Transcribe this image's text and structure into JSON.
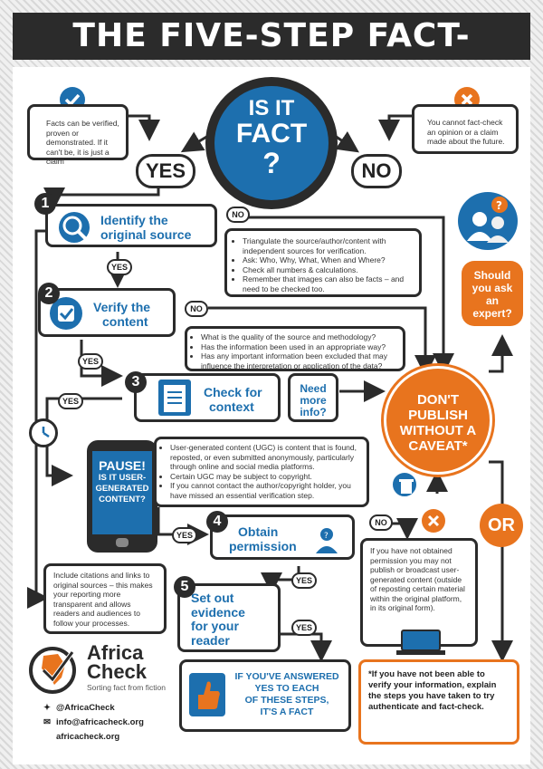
{
  "title": "THE FIVE-STEP FACT-CHECK",
  "center": {
    "line1": "IS IT",
    "line2": "FACT",
    "line3": "?"
  },
  "yes_label": "YES",
  "no_label": "NO",
  "yes_note": "Facts can be verified, proven or demonstrated. If it can't be, it is just a claim",
  "no_note": "You cannot fact-check an opinion or a claim made about the future.",
  "steps": {
    "s1": {
      "num": "1",
      "title_line1": "Identify the",
      "title_line2": "original source"
    },
    "s2": {
      "num": "2",
      "title_line1": "Verify the",
      "title_line2": "content"
    },
    "s3": {
      "num": "3",
      "title_line1": "Check for",
      "title_line2": "context"
    },
    "s4": {
      "num": "4",
      "title_line1": "Obtain",
      "title_line2": "permission"
    },
    "s5": {
      "num": "5",
      "title_line1": "Set out",
      "title_line2": "evidence",
      "title_line3": "for your",
      "title_line4": "reader"
    }
  },
  "labels": {
    "yes": "YES",
    "no": "NO",
    "or": "OR"
  },
  "notes": {
    "triangulate": [
      "Triangulate the source/author/content with independent sources for verification.",
      "Ask: Who, Why, What, When and Where?",
      "Check all numbers & calculations.",
      "Remember that images can also be facts – and need to be checked too."
    ],
    "quality": [
      "What is the quality of the source and methodology?",
      "Has the information been used in an appropriate way?",
      "Has any important information been excluded that may influence the interpretation or application of the data?"
    ],
    "ugc": [
      "User-generated content (UGC) is content that is found, reposted, or even submitted anonymously, particularly through online and social media platforms.",
      "Certain UGC may be subject to copyright.",
      "If you cannot contact the author/copyright holder, you have missed an essential verification step."
    ],
    "citations": "Include citations and links to original sources – this makes your reporting more transparent and allows readers and audiences to follow your processes.",
    "not_obtained": "If you have not obtained permission you may not publish or broadcast user-generated content (outside of reposting certain material within the original platform, in its original form)."
  },
  "need_more_info": {
    "line1": "Need",
    "line2": "more",
    "line3": "info?"
  },
  "dont_publish": {
    "line1": "DON'T",
    "line2": "PUBLISH",
    "line3": "WITHOUT A",
    "line4": "CAVEAT*"
  },
  "expert": {
    "line1": "Should",
    "line2": "you ask",
    "line3": "an",
    "line4": "expert?"
  },
  "pause": {
    "line1": "PAUSE!",
    "line2": "IS IT USER-",
    "line3": "GENERATED",
    "line4": "CONTENT?"
  },
  "final_yes": {
    "line1": "IF YOU'VE ANSWERED",
    "line2": "YES TO EACH",
    "line3": "OF THESE STEPS,",
    "line4": "IT'S A FACT"
  },
  "caveat_note": "*If you have not been able to verify your information, explain the steps you have taken to try authenticate and fact-check.",
  "brand": {
    "name_line1": "Africa",
    "name_line2": "Check",
    "tagline": "Sorting fact from fiction",
    "twitter": "@AfricaCheck",
    "email": "info@africacheck.org",
    "web": "africacheck.org"
  },
  "colors": {
    "dark": "#2b2b2b",
    "blue": "#1d6fae",
    "orange": "#e8741e"
  }
}
